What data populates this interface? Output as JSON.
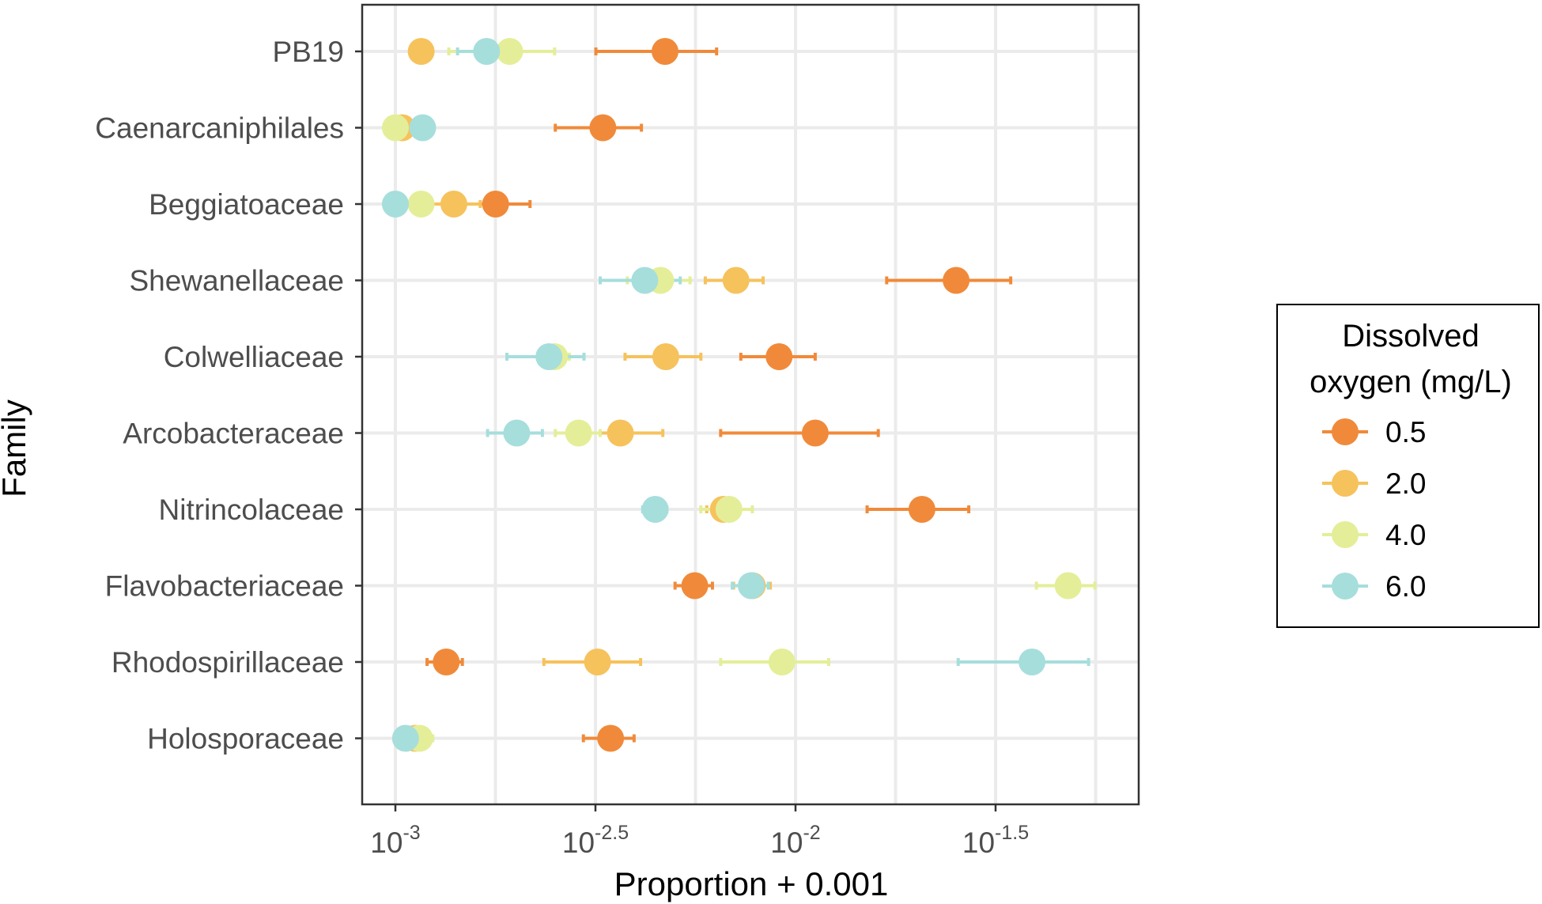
{
  "chart_data": {
    "type": "scatter",
    "xlabel": "Proportion + 0.001",
    "ylabel": "Family",
    "x_scale": "log10",
    "xlim_log10": [
      -3.08,
      -1.33
    ],
    "x_ticks": [
      {
        "base": "10",
        "exp": "-3",
        "log10": -3.0
      },
      {
        "base": "10",
        "exp": "-2.5",
        "log10": -2.5
      },
      {
        "base": "10",
        "exp": "-2",
        "log10": -2.0
      },
      {
        "base": "10",
        "exp": "-1.5",
        "log10": -1.5
      }
    ],
    "grid": true,
    "legend": {
      "title_lines": [
        "Dissolved",
        "oxygen (mg/L)"
      ],
      "placement": "right"
    },
    "categories": [
      "PB19",
      "Caenarcaniphilales",
      "Beggiatoaceae",
      "Shewanellaceae",
      "Colwelliaceae",
      "Arcobacteraceae",
      "Nitrincolaceae",
      "Flavobacteriaceae",
      "Rhodospirillaceae",
      "Holosporaceae"
    ],
    "series": [
      {
        "name": "0.5",
        "color": "#F08A3A",
        "points": [
          {
            "y": "PB19",
            "x": 0.00472,
            "lo": 0.00317,
            "hi": 0.00635
          },
          {
            "y": "Caenarcaniphilales",
            "x": 0.0033,
            "lo": 0.00251,
            "hi": 0.00412
          },
          {
            "y": "Beggiatoaceae",
            "x": 0.00178,
            "lo": 0.00147,
            "hi": 0.00217
          },
          {
            "y": "Shewanellaceae",
            "x": 0.0252,
            "lo": 0.0169,
            "hi": 0.0345
          },
          {
            "y": "Colwelliaceae",
            "x": 0.0091,
            "lo": 0.0073,
            "hi": 0.0112
          },
          {
            "y": "Arcobacteraceae",
            "x": 0.0112,
            "lo": 0.0065,
            "hi": 0.0161
          },
          {
            "y": "Nitrincolaceae",
            "x": 0.0207,
            "lo": 0.0151,
            "hi": 0.0271
          },
          {
            "y": "Flavobacteriaceae",
            "x": 0.0056,
            "lo": 0.005,
            "hi": 0.0062
          },
          {
            "y": "Rhodospirillaceae",
            "x": 0.00134,
            "lo": 0.0012,
            "hi": 0.00147
          },
          {
            "y": "Holosporaceae",
            "x": 0.00345,
            "lo": 0.00295,
            "hi": 0.00395
          }
        ]
      },
      {
        "name": "2.0",
        "color": "#F6C25C",
        "points": [
          {
            "y": "PB19",
            "x": 0.00116,
            "lo": 0.00116,
            "hi": 0.00116
          },
          {
            "y": "Caenarcaniphilales",
            "x": 0.00104,
            "lo": 0.00102,
            "hi": 0.00108
          },
          {
            "y": "Beggiatoaceae",
            "x": 0.0014,
            "lo": 0.00119,
            "hi": 0.00163
          },
          {
            "y": "Shewanellaceae",
            "x": 0.0071,
            "lo": 0.00595,
            "hi": 0.0083
          },
          {
            "y": "Colwelliaceae",
            "x": 0.00474,
            "lo": 0.00375,
            "hi": 0.0058
          },
          {
            "y": "Arcobacteraceae",
            "x": 0.00365,
            "lo": 0.003,
            "hi": 0.00466
          },
          {
            "y": "Nitrincolaceae",
            "x": 0.0066,
            "lo": 0.006,
            "hi": 0.0072
          },
          {
            "y": "Flavobacteriaceae",
            "x": 0.0078,
            "lo": 0.007,
            "hi": 0.00865
          },
          {
            "y": "Rhodospirillaceae",
            "x": 0.0032,
            "lo": 0.00235,
            "hi": 0.0041
          },
          {
            "y": "Holosporaceae",
            "x": 0.00112,
            "lo": 0.00104,
            "hi": 0.0012
          }
        ]
      },
      {
        "name": "4.0",
        "color": "#E4EE98",
        "points": [
          {
            "y": "PB19",
            "x": 0.00193,
            "lo": 0.00136,
            "hi": 0.0025
          },
          {
            "y": "Caenarcaniphilales",
            "x": 0.001,
            "lo": 0.001,
            "hi": 0.001
          },
          {
            "y": "Beggiatoaceae",
            "x": 0.00116,
            "lo": 0.00116,
            "hi": 0.00116
          },
          {
            "y": "Shewanellaceae",
            "x": 0.0046,
            "lo": 0.0038,
            "hi": 0.00545
          },
          {
            "y": "Colwelliaceae",
            "x": 0.0025,
            "lo": 0.0023,
            "hi": 0.00272
          },
          {
            "y": "Arcobacteraceae",
            "x": 0.00287,
            "lo": 0.00251,
            "hi": 0.00325
          },
          {
            "y": "Nitrincolaceae",
            "x": 0.00682,
            "lo": 0.0058,
            "hi": 0.0078
          },
          {
            "y": "Flavobacteriaceae",
            "x": 0.048,
            "lo": 0.04,
            "hi": 0.056
          },
          {
            "y": "Rhodospirillaceae",
            "x": 0.00925,
            "lo": 0.0065,
            "hi": 0.0121
          },
          {
            "y": "Holosporaceae",
            "x": 0.00115,
            "lo": 0.00106,
            "hi": 0.00124
          }
        ]
      },
      {
        "name": "6.0",
        "color": "#A6DEDC",
        "points": [
          {
            "y": "PB19",
            "x": 0.00169,
            "lo": 0.00143,
            "hi": 0.00196
          },
          {
            "y": "Caenarcaniphilales",
            "x": 0.00117,
            "lo": 0.00117,
            "hi": 0.00117
          },
          {
            "y": "Beggiatoaceae",
            "x": 0.001,
            "lo": 0.001,
            "hi": 0.001
          },
          {
            "y": "Shewanellaceae",
            "x": 0.0042,
            "lo": 0.00325,
            "hi": 0.00515
          },
          {
            "y": "Colwelliaceae",
            "x": 0.00242,
            "lo": 0.0019,
            "hi": 0.00296
          },
          {
            "y": "Arcobacteraceae",
            "x": 0.00201,
            "lo": 0.0017,
            "hi": 0.00233
          },
          {
            "y": "Nitrincolaceae",
            "x": 0.00446,
            "lo": 0.00415,
            "hi": 0.00477
          },
          {
            "y": "Flavobacteriaceae",
            "x": 0.00775,
            "lo": 0.00695,
            "hi": 0.00855
          },
          {
            "y": "Rhodospirillaceae",
            "x": 0.039,
            "lo": 0.0255,
            "hi": 0.054
          },
          {
            "y": "Holosporaceae",
            "x": 0.00106,
            "lo": 0.00106,
            "hi": 0.00106
          }
        ]
      }
    ]
  }
}
